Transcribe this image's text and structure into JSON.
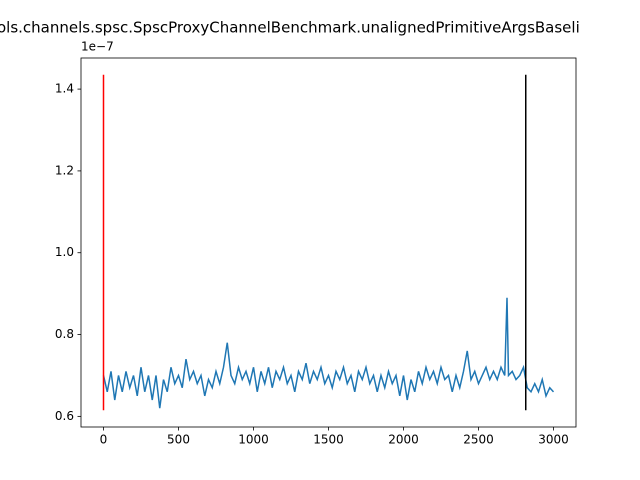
{
  "chart_data": {
    "type": "line",
    "title": "ols.channels.spsc.SpscProxyChannelBenchmark.unalignedPrimitiveArgsBaseli",
    "y_offset_label": "1e−7",
    "xlim": [
      -150,
      3150
    ],
    "xticks": [
      0,
      500,
      1000,
      1500,
      2000,
      2500,
      3000
    ],
    "ylim": [
      0.574,
      1.476
    ],
    "yticks": [
      0.6,
      0.8,
      {
        "value": 1,
        "label": "1.0"
      },
      1.2,
      1.4
    ],
    "series": [
      {
        "color": "#1f77b4",
        "x": [
          0,
          25,
          50,
          75,
          100,
          125,
          150,
          175,
          200,
          225,
          250,
          275,
          300,
          325,
          350,
          375,
          400,
          425,
          450,
          475,
          500,
          525,
          550,
          575,
          600,
          625,
          650,
          675,
          700,
          725,
          750,
          775,
          800,
          825,
          850,
          875,
          900,
          925,
          950,
          975,
          1000,
          1025,
          1050,
          1075,
          1100,
          1125,
          1150,
          1175,
          1200,
          1225,
          1250,
          1275,
          1300,
          1325,
          1350,
          1375,
          1400,
          1425,
          1450,
          1475,
          1500,
          1525,
          1550,
          1575,
          1600,
          1625,
          1650,
          1675,
          1700,
          1725,
          1750,
          1775,
          1800,
          1825,
          1850,
          1875,
          1900,
          1925,
          1950,
          1975,
          2000,
          2025,
          2050,
          2075,
          2100,
          2125,
          2150,
          2175,
          2200,
          2225,
          2250,
          2275,
          2300,
          2325,
          2350,
          2375,
          2400,
          2425,
          2450,
          2475,
          2500,
          2525,
          2550,
          2575,
          2600,
          2625,
          2650,
          2675,
          2690,
          2700,
          2725,
          2750,
          2775,
          2800,
          2825,
          2850,
          2875,
          2900,
          2925,
          2950,
          2975,
          3000
        ],
        "values": [
          0.7,
          0.66,
          0.71,
          0.64,
          0.7,
          0.66,
          0.71,
          0.67,
          0.7,
          0.65,
          0.72,
          0.66,
          0.7,
          0.64,
          0.7,
          0.62,
          0.69,
          0.66,
          0.72,
          0.68,
          0.7,
          0.67,
          0.74,
          0.69,
          0.71,
          0.68,
          0.7,
          0.65,
          0.69,
          0.67,
          0.71,
          0.68,
          0.72,
          0.78,
          0.7,
          0.68,
          0.72,
          0.69,
          0.71,
          0.68,
          0.72,
          0.66,
          0.71,
          0.68,
          0.72,
          0.67,
          0.71,
          0.69,
          0.72,
          0.68,
          0.7,
          0.66,
          0.71,
          0.69,
          0.73,
          0.68,
          0.71,
          0.69,
          0.72,
          0.68,
          0.7,
          0.67,
          0.71,
          0.69,
          0.72,
          0.68,
          0.7,
          0.66,
          0.71,
          0.69,
          0.72,
          0.68,
          0.7,
          0.66,
          0.7,
          0.67,
          0.71,
          0.68,
          0.7,
          0.65,
          0.7,
          0.64,
          0.69,
          0.66,
          0.71,
          0.68,
          0.72,
          0.69,
          0.71,
          0.68,
          0.72,
          0.69,
          0.7,
          0.66,
          0.7,
          0.67,
          0.71,
          0.76,
          0.69,
          0.71,
          0.68,
          0.7,
          0.72,
          0.69,
          0.71,
          0.69,
          0.72,
          0.7,
          0.89,
          0.7,
          0.71,
          0.69,
          0.7,
          0.72,
          0.67,
          0.66,
          0.68,
          0.66,
          0.69,
          0.65,
          0.67,
          0.66
        ]
      },
      {
        "color": "red",
        "x": [
          0,
          0
        ],
        "values": [
          0.615,
          1.435
        ]
      },
      {
        "color": "black",
        "x": [
          2815,
          2815
        ],
        "values": [
          0.615,
          1.435
        ]
      }
    ]
  }
}
